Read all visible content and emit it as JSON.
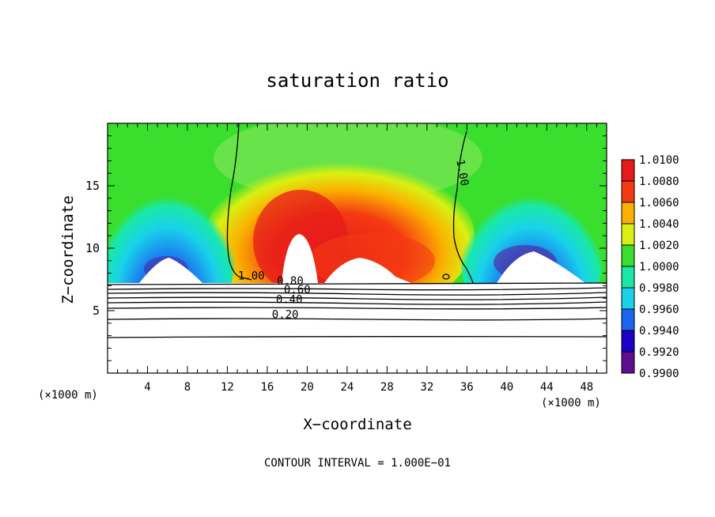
{
  "chart_data": {
    "type": "heatmap",
    "title": "saturation ratio",
    "xlabel": "X−coordinate",
    "ylabel": "Z−coordinate",
    "x_unit_label": "(×1000 m)",
    "footer": "CONTOUR INTERVAL = 1.000E−01",
    "xlim": [
      0,
      50
    ],
    "ylim": [
      0,
      20
    ],
    "x_ticks": [
      4,
      8,
      12,
      16,
      20,
      24,
      28,
      32,
      36,
      40,
      44,
      48
    ],
    "y_ticks": [
      5,
      10,
      15
    ],
    "colorbar": {
      "levels": [
        "0.9900",
        "0.9920",
        "0.9940",
        "0.9960",
        "0.9980",
        "1.0000",
        "1.0020",
        "1.0040",
        "1.0060",
        "1.0080",
        "1.0100"
      ],
      "colors": [
        "#5c0f8f",
        "#1d00c8",
        "#1a66f0",
        "#19d2ea",
        "#19e8a8",
        "#3ade2d",
        "#d9f012",
        "#fbb100",
        "#f43a12",
        "#e51b1b",
        "#ff9999"
      ]
    },
    "contour_labels": [
      {
        "text": "1.00",
        "x": 14.4,
        "y": 7.5
      },
      {
        "text": "0.80",
        "x": 18.3,
        "y": 7.1
      },
      {
        "text": "0.60",
        "x": 19.0,
        "y": 6.4
      },
      {
        "text": "0.40",
        "x": 18.2,
        "y": 5.6
      },
      {
        "text": "0.20",
        "x": 17.8,
        "y": 4.4
      },
      {
        "text": "1.00",
        "x": 35.2,
        "y": 16.0
      }
    ],
    "contour_levels": [
      0.2,
      0.3,
      0.4,
      0.5,
      0.6,
      0.7,
      0.8,
      0.9,
      1.0
    ],
    "cloud_top_z": 7.4
  }
}
